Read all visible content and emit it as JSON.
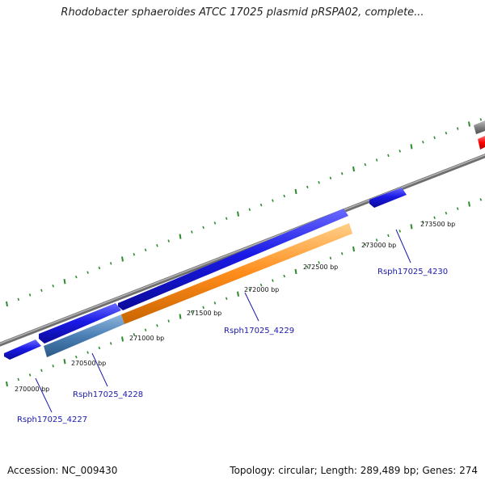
{
  "title": "Rhodobacter sphaeroides ATCC 17025 plasmid pRSPA02, complete...",
  "footer": {
    "accession": "Accession: NC_009430",
    "stats": "Topology: circular; Length: 289,489 bp; Genes: 274"
  },
  "scale_labels": [
    "270000 bp",
    "270500 bp",
    "271000 bp",
    "271500 bp",
    "272000 bp",
    "272500 bp",
    "273000 bp",
    "273500 bp"
  ],
  "genes": [
    {
      "name": "Rsph17025_4227"
    },
    {
      "name": "Rsph17025_4228"
    },
    {
      "name": "Rsph17025_4229"
    },
    {
      "name": "Rsph17025_4230"
    }
  ],
  "colors": {
    "backbone": "#8a8a8a",
    "tick": "#2e8b2e",
    "gene_forward": "#1a1ae6",
    "gene_steelblue": "#4a7fb5",
    "gene_orange": "#ff8c1a",
    "gene_red": "#ff0000",
    "gene_gray": "#808080",
    "label": "#1a1aaa"
  }
}
